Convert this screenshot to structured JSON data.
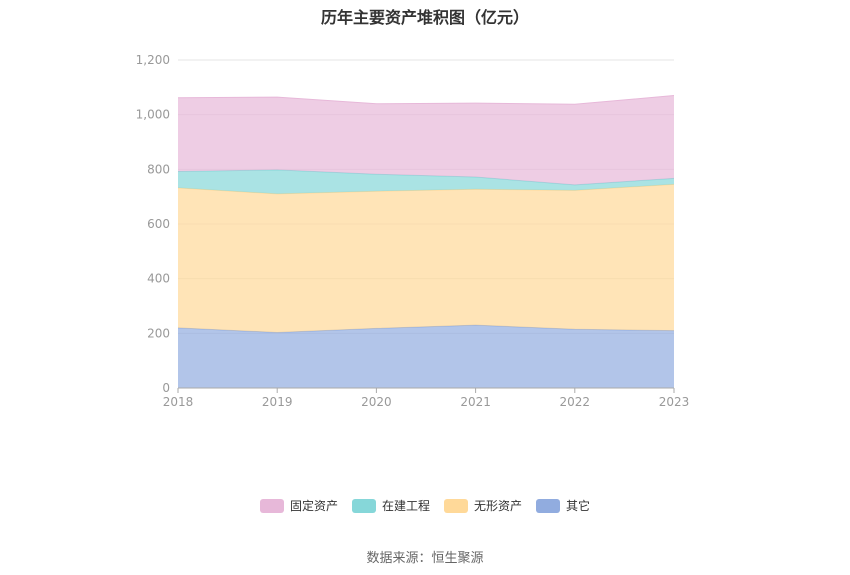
{
  "chart_data": {
    "type": "area",
    "stacked": true,
    "title": "历年主要资产堆积图（亿元）",
    "x": [
      "2018",
      "2019",
      "2020",
      "2021",
      "2022",
      "2023"
    ],
    "ylim": [
      0,
      1200
    ],
    "yticks": [
      "0",
      "200",
      "400",
      "600",
      "800",
      "1,000",
      "1,200"
    ],
    "grid": true,
    "legend_position": "bottom",
    "series": [
      {
        "name": "其它",
        "color": "#91acdf",
        "values": [
          220,
          203,
          218,
          230,
          215,
          210
        ]
      },
      {
        "name": "无形资产",
        "color": "#ffd999",
        "values": [
          512,
          507,
          502,
          497,
          508,
          535
        ]
      },
      {
        "name": "在建工程",
        "color": "#86d7d9",
        "values": [
          60,
          88,
          62,
          45,
          20,
          22
        ]
      },
      {
        "name": "固定资产",
        "color": "#e7b8d9",
        "values": [
          270,
          266,
          258,
          270,
          295,
          303
        ]
      }
    ]
  },
  "source_text": "数据来源：恒生聚源"
}
